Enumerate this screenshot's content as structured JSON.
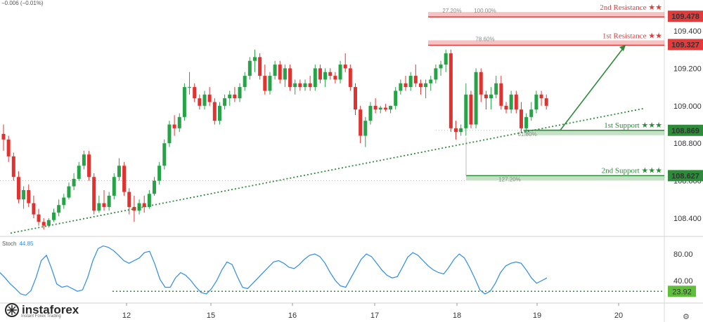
{
  "header": {
    "change_text": "−0.006 (−0.01%)"
  },
  "chart_data": {
    "type": "candlestick",
    "instrument_change": "−0.006 (−0.01%)",
    "price_axis": {
      "range": [
        108.3,
        109.52
      ],
      "ticks": [
        "109.400",
        "109.200",
        "109.000",
        "108.800",
        "108.600",
        "108.400"
      ]
    },
    "time_axis": {
      "ticks": [
        "12",
        "15",
        "16",
        "17",
        "18",
        "19",
        "20"
      ]
    },
    "levels": [
      {
        "name": "2nd Resistance ★★",
        "price": "109.478",
        "fib_label": "100.00%",
        "extra_label": "27.20%",
        "color": "#e03c3c"
      },
      {
        "name": "1st Resistance ★★",
        "price": "109.327",
        "fib_label": "78.60%",
        "color": "#e03c3c"
      },
      {
        "name": "1st Support ★★★",
        "price": "108.869",
        "fib_label": "61.80%",
        "color": "#2e8b3a"
      },
      {
        "name": "2nd Support ★★★",
        "price": "108.627",
        "fib_label": "127.20%",
        "color": "#2e8b3a"
      }
    ],
    "trendline": {
      "from": [
        "11.0",
        108.32
      ],
      "to": [
        "19.8",
        108.985
      ],
      "style": "dotted"
    },
    "projection_arrow": {
      "from": [
        "19.3",
        108.87
      ],
      "to": [
        "20.1",
        109.325
      ]
    },
    "candles": [
      [
        0.0,
        108.85,
        108.9,
        108.76,
        108.82
      ],
      [
        0.1,
        108.82,
        108.84,
        108.7,
        108.73
      ],
      [
        0.2,
        108.73,
        108.75,
        108.6,
        108.62
      ],
      [
        0.3,
        108.62,
        108.65,
        108.48,
        108.5
      ],
      [
        0.4,
        108.5,
        108.57,
        108.45,
        108.55
      ],
      [
        0.5,
        108.55,
        108.58,
        108.46,
        108.48
      ],
      [
        0.6,
        108.48,
        108.52,
        108.4,
        108.42
      ],
      [
        0.7,
        108.42,
        108.45,
        108.36,
        108.38
      ],
      [
        0.8,
        108.38,
        108.4,
        108.34,
        108.36
      ],
      [
        0.9,
        108.36,
        108.4,
        108.35,
        108.39
      ],
      [
        1.0,
        108.39,
        108.45,
        108.38,
        108.43
      ],
      [
        1.1,
        108.43,
        108.5,
        108.41,
        108.47
      ],
      [
        1.2,
        108.47,
        108.53,
        108.45,
        108.51
      ],
      [
        1.3,
        108.51,
        108.59,
        108.5,
        108.57
      ],
      [
        1.4,
        108.57,
        108.64,
        108.55,
        108.61
      ],
      [
        1.5,
        108.61,
        108.7,
        108.6,
        108.68
      ],
      [
        1.6,
        108.68,
        108.76,
        108.66,
        108.74
      ],
      [
        1.7,
        108.74,
        108.76,
        108.6,
        108.62
      ],
      [
        1.8,
        108.62,
        108.64,
        108.42,
        108.44
      ],
      [
        1.9,
        108.44,
        108.52,
        108.43,
        108.48
      ],
      [
        2.0,
        108.48,
        108.55,
        108.44,
        108.46
      ],
      [
        2.1,
        108.46,
        108.54,
        108.44,
        108.52
      ],
      [
        2.2,
        108.52,
        108.64,
        108.5,
        108.62
      ],
      [
        2.3,
        108.62,
        108.72,
        108.6,
        108.68
      ],
      [
        2.4,
        108.68,
        108.7,
        108.52,
        108.54
      ],
      [
        2.5,
        108.54,
        108.56,
        108.42,
        108.46
      ],
      [
        2.6,
        108.46,
        108.52,
        108.38,
        108.44
      ],
      [
        2.7,
        108.44,
        108.5,
        108.42,
        108.48
      ],
      [
        2.8,
        108.48,
        108.52,
        108.43,
        108.46
      ],
      [
        2.9,
        108.46,
        108.55,
        108.45,
        108.53
      ],
      [
        3.0,
        108.53,
        108.62,
        108.52,
        108.6
      ],
      [
        3.1,
        108.6,
        108.7,
        108.58,
        108.68
      ],
      [
        3.2,
        108.68,
        108.82,
        108.66,
        108.8
      ],
      [
        3.3,
        108.8,
        108.92,
        108.78,
        108.9
      ],
      [
        3.4,
        108.9,
        108.95,
        108.84,
        108.88
      ],
      [
        3.5,
        108.88,
        108.96,
        108.86,
        108.94
      ],
      [
        3.6,
        108.94,
        109.12,
        108.92,
        109.1
      ],
      [
        3.7,
        109.1,
        109.18,
        109.06,
        109.1
      ],
      [
        3.8,
        109.1,
        109.12,
        109.02,
        109.04
      ],
      [
        3.9,
        109.04,
        109.06,
        108.98,
        109.0
      ],
      [
        4.0,
        109.0,
        109.08,
        108.98,
        109.06
      ],
      [
        4.1,
        109.06,
        109.1,
        109.0,
        109.02
      ],
      [
        4.2,
        109.02,
        109.04,
        108.9,
        108.92
      ],
      [
        4.3,
        108.92,
        109.02,
        108.9,
        109.0
      ],
      [
        4.4,
        109.0,
        109.06,
        108.98,
        109.04
      ],
      [
        4.5,
        109.04,
        109.08,
        109.0,
        109.06
      ],
      [
        4.6,
        109.06,
        109.1,
        109.02,
        109.04
      ],
      [
        4.7,
        109.04,
        109.12,
        109.02,
        109.1
      ],
      [
        4.8,
        109.1,
        109.18,
        109.08,
        109.16
      ],
      [
        4.9,
        109.16,
        109.26,
        109.14,
        109.24
      ],
      [
        5.0,
        109.24,
        109.3,
        109.18,
        109.26
      ],
      [
        5.1,
        109.26,
        109.28,
        109.14,
        109.16
      ],
      [
        5.2,
        109.16,
        109.22,
        109.06,
        109.08
      ],
      [
        5.3,
        109.08,
        109.18,
        109.06,
        109.16
      ],
      [
        5.4,
        109.16,
        109.24,
        109.14,
        109.22
      ],
      [
        5.5,
        109.22,
        109.24,
        109.12,
        109.14
      ],
      [
        5.6,
        109.14,
        109.22,
        109.1,
        109.2
      ],
      [
        5.7,
        109.2,
        109.22,
        109.08,
        109.1
      ],
      [
        5.8,
        109.1,
        109.14,
        109.06,
        109.12
      ],
      [
        5.9,
        109.12,
        109.14,
        109.08,
        109.1
      ],
      [
        6.0,
        109.1,
        109.14,
        109.08,
        109.12
      ],
      [
        6.1,
        109.12,
        109.16,
        109.08,
        109.1
      ],
      [
        6.2,
        109.1,
        109.22,
        109.08,
        109.2
      ],
      [
        6.3,
        109.2,
        109.22,
        109.12,
        109.14
      ],
      [
        6.4,
        109.14,
        109.2,
        109.1,
        109.18
      ],
      [
        6.5,
        109.18,
        109.2,
        109.14,
        109.16
      ],
      [
        6.6,
        109.16,
        109.18,
        109.12,
        109.14
      ],
      [
        6.7,
        109.14,
        109.24,
        109.12,
        109.22
      ],
      [
        6.8,
        109.22,
        109.28,
        109.18,
        109.2
      ],
      [
        6.9,
        109.2,
        109.22,
        109.08,
        109.1
      ],
      [
        7.0,
        109.1,
        109.12,
        108.95,
        108.98
      ],
      [
        7.1,
        108.98,
        109.0,
        108.8,
        108.84
      ],
      [
        7.2,
        108.84,
        108.94,
        108.78,
        108.92
      ],
      [
        7.3,
        108.92,
        109.02,
        108.9,
        109.0
      ],
      [
        7.4,
        109.0,
        109.04,
        108.96,
        108.98
      ],
      [
        7.5,
        108.98,
        109.0,
        108.96,
        108.99
      ],
      [
        7.6,
        108.99,
        109.01,
        108.97,
        108.98
      ],
      [
        7.7,
        108.98,
        109.0,
        108.96,
        109.0
      ],
      [
        7.8,
        109.0,
        109.1,
        108.98,
        109.08
      ],
      [
        7.9,
        109.08,
        109.14,
        109.06,
        109.12
      ],
      [
        8.0,
        109.12,
        109.16,
        109.08,
        109.1
      ],
      [
        8.1,
        109.1,
        109.18,
        109.08,
        109.16
      ],
      [
        8.2,
        109.16,
        109.22,
        109.1,
        109.12
      ],
      [
        8.3,
        109.12,
        109.14,
        109.06,
        109.1
      ],
      [
        8.4,
        109.1,
        109.14,
        109.04,
        109.12
      ],
      [
        8.5,
        109.12,
        109.16,
        109.08,
        109.14
      ],
      [
        8.6,
        109.14,
        109.22,
        109.12,
        109.2
      ],
      [
        8.7,
        109.2,
        109.24,
        109.16,
        109.22
      ],
      [
        8.8,
        109.22,
        109.3,
        109.18,
        109.28
      ],
      [
        8.9,
        109.28,
        109.3,
        108.86,
        108.88
      ],
      [
        9.0,
        108.88,
        108.92,
        108.82,
        108.86
      ],
      [
        9.1,
        108.86,
        108.9,
        108.84,
        108.88
      ],
      [
        9.2,
        108.88,
        109.12,
        108.84,
        109.06
      ],
      [
        9.3,
        109.06,
        109.08,
        108.88,
        108.9
      ],
      [
        9.4,
        108.9,
        109.2,
        108.88,
        109.18
      ],
      [
        9.5,
        109.18,
        109.2,
        109.02,
        109.06
      ],
      [
        9.6,
        109.06,
        109.08,
        108.98,
        109.04
      ],
      [
        9.7,
        109.04,
        109.1,
        108.98,
        109.06
      ],
      [
        9.8,
        109.06,
        109.16,
        109.04,
        109.12
      ],
      [
        9.9,
        109.12,
        109.16,
        108.98,
        109.0
      ],
      [
        10.0,
        109.0,
        109.02,
        108.96,
        108.98
      ],
      [
        10.1,
        108.98,
        109.08,
        108.96,
        109.06
      ],
      [
        10.2,
        109.06,
        109.08,
        108.96,
        108.98
      ],
      [
        10.3,
        108.98,
        109.02,
        108.86,
        108.88
      ],
      [
        10.4,
        108.88,
        108.96,
        108.86,
        108.94
      ],
      [
        10.5,
        108.94,
        109.02,
        108.92,
        108.98
      ],
      [
        10.6,
        108.98,
        109.08,
        108.96,
        109.06
      ],
      [
        10.7,
        109.06,
        109.08,
        109.0,
        109.04
      ],
      [
        10.8,
        109.04,
        109.06,
        108.98,
        109.0
      ]
    ],
    "stochastic": {
      "name": "Stoch",
      "value": "44.85",
      "axis_ticks": [
        "80.00",
        "40.00"
      ],
      "range": [
        0,
        100
      ],
      "level_label": "23.92",
      "level": 23.92,
      "k_values": [
        52,
        44,
        35,
        28,
        20,
        18,
        25,
        45,
        70,
        78,
        58,
        35,
        30,
        32,
        28,
        24,
        26,
        45,
        70,
        88,
        92,
        90,
        85,
        78,
        70,
        66,
        70,
        74,
        82,
        84,
        65,
        42,
        30,
        30,
        44,
        52,
        48,
        40,
        30,
        22,
        20,
        28,
        40,
        56,
        68,
        64,
        46,
        30,
        28,
        36,
        44,
        52,
        60,
        68,
        70,
        66,
        60,
        58,
        64,
        72,
        78,
        80,
        76,
        66,
        52,
        40,
        32,
        30,
        44,
        58,
        72,
        80,
        76,
        66,
        56,
        48,
        44,
        46,
        60,
        75,
        82,
        78,
        70,
        62,
        56,
        52,
        50,
        60,
        72,
        80,
        74,
        60,
        44,
        26,
        20,
        24,
        36,
        52,
        62,
        66,
        68,
        66,
        56,
        44,
        36,
        40,
        44
      ]
    }
  },
  "branding": {
    "logo_text": "instaforex",
    "logo_sub": "Instant Forex Trading"
  }
}
